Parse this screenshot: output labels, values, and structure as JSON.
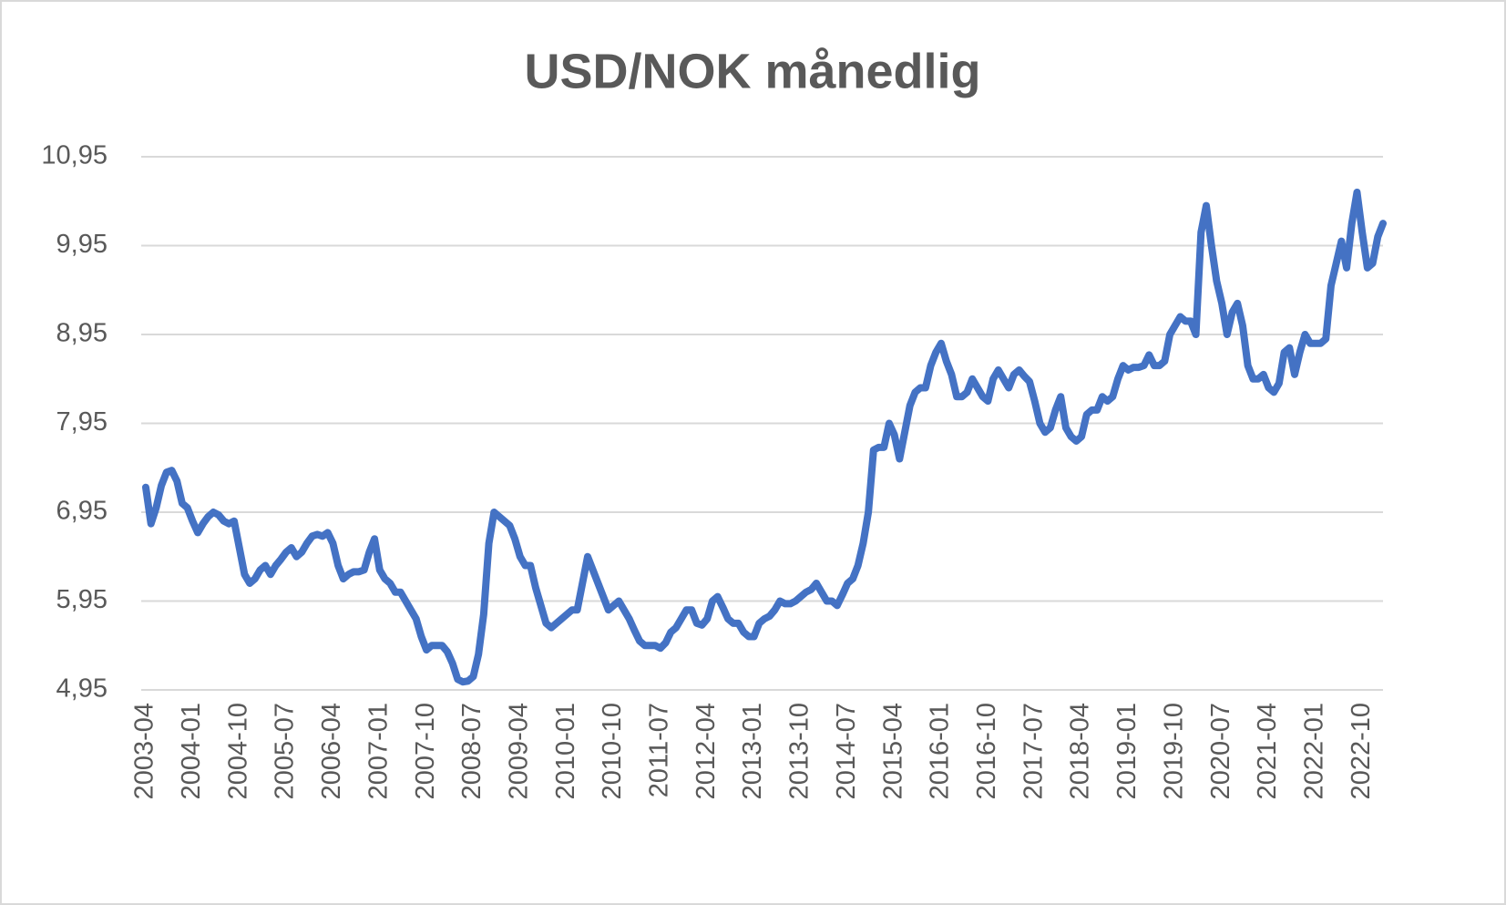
{
  "chart_data": {
    "type": "line",
    "title": "USD/NOK månedlig",
    "categories": [
      "2003-04",
      null,
      null,
      null,
      null,
      null,
      null,
      null,
      null,
      "2004-01",
      null,
      null,
      null,
      null,
      null,
      null,
      null,
      null,
      "2004-10",
      null,
      null,
      null,
      null,
      null,
      null,
      null,
      null,
      "2005-07",
      null,
      null,
      null,
      null,
      null,
      null,
      null,
      null,
      "2006-04",
      null,
      null,
      null,
      null,
      null,
      null,
      null,
      null,
      "2007-01",
      null,
      null,
      null,
      null,
      null,
      null,
      null,
      null,
      "2007-10",
      null,
      null,
      null,
      null,
      null,
      null,
      null,
      null,
      "2008-07",
      null,
      null,
      null,
      null,
      null,
      null,
      null,
      null,
      "2009-04",
      null,
      null,
      null,
      null,
      null,
      null,
      null,
      null,
      "2010-01",
      null,
      null,
      null,
      null,
      null,
      null,
      null,
      null,
      "2010-10",
      null,
      null,
      null,
      null,
      null,
      null,
      null,
      null,
      "2011-07",
      null,
      null,
      null,
      null,
      null,
      null,
      null,
      null,
      "2012-04",
      null,
      null,
      null,
      null,
      null,
      null,
      null,
      null,
      "2013-01",
      null,
      null,
      null,
      null,
      null,
      null,
      null,
      null,
      "2013-10",
      null,
      null,
      null,
      null,
      null,
      null,
      null,
      null,
      "2014-07",
      null,
      null,
      null,
      null,
      null,
      null,
      null,
      null,
      "2015-04",
      null,
      null,
      null,
      null,
      null,
      null,
      null,
      null,
      "2016-01",
      null,
      null,
      null,
      null,
      null,
      null,
      null,
      null,
      "2016-10",
      null,
      null,
      null,
      null,
      null,
      null,
      null,
      null,
      "2017-07",
      null,
      null,
      null,
      null,
      null,
      null,
      null,
      null,
      "2018-04",
      null,
      null,
      null,
      null,
      null,
      null,
      null,
      null,
      "2019-01",
      null,
      null,
      null,
      null,
      null,
      null,
      null,
      null,
      "2019-10",
      null,
      null,
      null,
      null,
      null,
      null,
      null,
      null,
      "2020-07",
      null,
      null,
      null,
      null,
      null,
      null,
      null,
      null,
      "2021-04",
      null,
      null,
      null,
      null,
      null,
      null,
      null,
      null,
      "2022-01",
      null,
      null,
      null,
      null,
      null,
      null,
      null,
      null,
      "2022-10",
      null,
      null,
      null,
      null
    ],
    "values": [
      7.23,
      6.82,
      7.0,
      7.25,
      7.4,
      7.42,
      7.3,
      7.05,
      7.0,
      6.85,
      6.72,
      6.82,
      6.9,
      6.95,
      6.92,
      6.85,
      6.82,
      6.85,
      6.55,
      6.25,
      6.15,
      6.2,
      6.3,
      6.35,
      6.25,
      6.35,
      6.42,
      6.5,
      6.55,
      6.45,
      6.5,
      6.6,
      6.68,
      6.7,
      6.68,
      6.72,
      6.6,
      6.35,
      6.2,
      6.25,
      6.28,
      6.28,
      6.3,
      6.5,
      6.65,
      6.3,
      6.2,
      6.15,
      6.05,
      6.05,
      5.95,
      5.85,
      5.75,
      5.55,
      5.4,
      5.45,
      5.45,
      5.45,
      5.38,
      5.25,
      5.07,
      5.04,
      5.05,
      5.1,
      5.35,
      5.8,
      6.6,
      6.95,
      6.9,
      6.85,
      6.8,
      6.65,
      6.45,
      6.35,
      6.35,
      6.1,
      5.9,
      5.7,
      5.65,
      5.7,
      5.75,
      5.8,
      5.85,
      5.85,
      6.15,
      6.45,
      6.3,
      6.15,
      6.0,
      5.85,
      5.9,
      5.95,
      5.85,
      5.75,
      5.62,
      5.5,
      5.45,
      5.45,
      5.45,
      5.42,
      5.48,
      5.6,
      5.65,
      5.75,
      5.85,
      5.85,
      5.7,
      5.68,
      5.75,
      5.95,
      6.0,
      5.88,
      5.75,
      5.7,
      5.7,
      5.6,
      5.55,
      5.55,
      5.7,
      5.75,
      5.78,
      5.85,
      5.95,
      5.92,
      5.92,
      5.95,
      6.0,
      6.05,
      6.08,
      6.15,
      6.05,
      5.95,
      5.95,
      5.9,
      6.02,
      6.15,
      6.2,
      6.35,
      6.6,
      6.95,
      7.65,
      7.68,
      7.68,
      7.95,
      7.82,
      7.55,
      7.85,
      8.15,
      8.3,
      8.35,
      8.35,
      8.6,
      8.75,
      8.85,
      8.65,
      8.5,
      8.25,
      8.25,
      8.3,
      8.45,
      8.35,
      8.25,
      8.2,
      8.45,
      8.55,
      8.45,
      8.35,
      8.5,
      8.55,
      8.48,
      8.42,
      8.2,
      7.95,
      7.85,
      7.9,
      8.1,
      8.25,
      7.9,
      7.8,
      7.75,
      7.8,
      8.05,
      8.1,
      8.1,
      8.25,
      8.2,
      8.25,
      8.45,
      8.6,
      8.55,
      8.58,
      8.58,
      8.6,
      8.72,
      8.6,
      8.6,
      8.65,
      8.95,
      9.05,
      9.15,
      9.1,
      9.1,
      8.95,
      10.1,
      10.4,
      9.95,
      9.55,
      9.3,
      8.95,
      9.2,
      9.3,
      9.05,
      8.6,
      8.45,
      8.45,
      8.5,
      8.35,
      8.3,
      8.4,
      8.75,
      8.8,
      8.5,
      8.75,
      8.95,
      8.85,
      8.85,
      8.85,
      8.9,
      9.5,
      9.75,
      10.0,
      9.7,
      10.2,
      10.55,
      10.1,
      9.7,
      9.75,
      10.05,
      10.2
    ],
    "color": "#4472c4",
    "ylim": [
      4.95,
      10.95
    ],
    "yticks": [
      {
        "value": 4.95,
        "label": "4,95"
      },
      {
        "value": 5.95,
        "label": "5,95"
      },
      {
        "value": 6.95,
        "label": "6,95"
      },
      {
        "value": 7.95,
        "label": "7,95"
      },
      {
        "value": 8.95,
        "label": "8,95"
      },
      {
        "value": 9.95,
        "label": "9,95"
      },
      {
        "value": 10.95,
        "label": "10,95"
      }
    ],
    "grid": true
  }
}
